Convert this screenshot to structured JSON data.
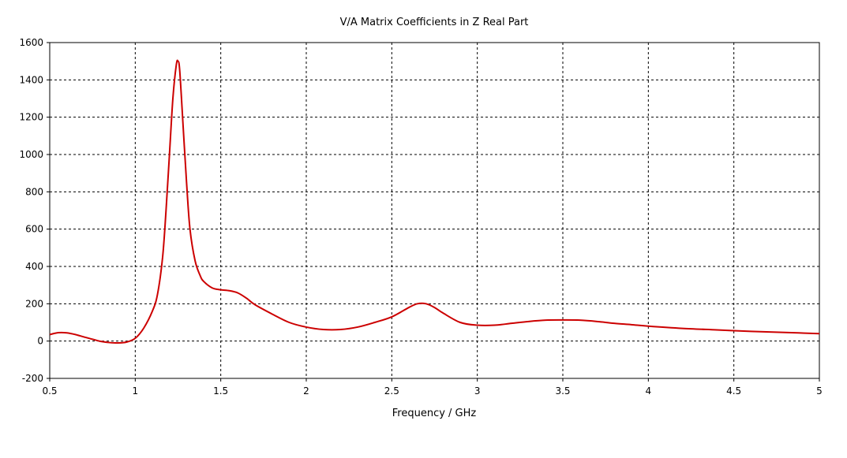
{
  "chart_data": {
    "type": "line",
    "title": "V/A Matrix Coefficients in Z Real Part",
    "xlabel": "Frequency / GHz",
    "ylabel": "",
    "xlim": [
      0.5,
      5
    ],
    "ylim": [
      -200,
      1600
    ],
    "x_ticks": [
      "0.5",
      "1",
      "1.5",
      "2",
      "2.5",
      "3",
      "3.5",
      "4",
      "4.5",
      "5"
    ],
    "y_ticks": [
      "-200",
      "0",
      "200",
      "400",
      "600",
      "800",
      "1000",
      "1200",
      "1400",
      "1600"
    ],
    "grid": true,
    "line_color": "#cc0000",
    "series": [
      {
        "x": [
          0.5,
          0.55,
          0.6,
          0.65,
          0.7,
          0.75,
          0.8,
          0.85,
          0.9,
          0.95,
          1.0,
          1.05,
          1.1,
          1.13,
          1.16,
          1.18,
          1.2,
          1.22,
          1.24,
          1.25,
          1.26,
          1.28,
          1.3,
          1.32,
          1.35,
          1.38,
          1.4,
          1.45,
          1.5,
          1.55,
          1.6,
          1.65,
          1.7,
          1.8,
          1.9,
          2.0,
          2.1,
          2.2,
          2.3,
          2.4,
          2.5,
          2.6,
          2.65,
          2.7,
          2.75,
          2.8,
          2.9,
          3.0,
          3.1,
          3.2,
          3.3,
          3.4,
          3.5,
          3.6,
          3.7,
          3.8,
          3.9,
          4.0,
          4.2,
          4.4,
          4.6,
          4.8,
          5.0
        ],
        "y": [
          35,
          45,
          44,
          35,
          22,
          10,
          -2,
          -8,
          -10,
          -5,
          15,
          70,
          160,
          250,
          450,
          700,
          1000,
          1300,
          1480,
          1500,
          1450,
          1150,
          850,
          600,
          430,
          350,
          320,
          285,
          275,
          270,
          258,
          230,
          195,
          145,
          100,
          75,
          62,
          62,
          75,
          100,
          130,
          180,
          200,
          200,
          180,
          150,
          100,
          85,
          85,
          95,
          105,
          112,
          113,
          112,
          105,
          95,
          88,
          80,
          68,
          60,
          52,
          46,
          40
        ]
      }
    ]
  }
}
